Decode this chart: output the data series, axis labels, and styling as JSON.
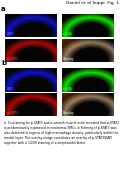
{
  "header": "Daniel et al Suppl. Fig. 1",
  "header_fontsize": 3.2,
  "panel_a_label": "a",
  "panel_b_label": "b",
  "panel_label_fontsize": 5,
  "labels_a": [
    "DAPI",
    "α-SMA",
    "p-STAT3",
    "Overlay"
  ],
  "labels_b": [
    "DAPI",
    "α-SMA",
    "p-STAT3",
    "Overlay"
  ],
  "label_colors": [
    "#5577ff",
    "#44ff44",
    "#ff4444",
    "#ffffff"
  ],
  "caption": "a  Co-staining for p-STAT3 and α-smooth muscle actin revealed that p-STAT3 is predominantly expressed in neointimal SMCs. b Staining of p-STAT3 was also detected in regions of high macrophage density, particularly within the medial layer. The overlay image constitutes an overlay of p-STAT3/DAPI together with a 1/200 staining of α-streptavidin biotin.",
  "caption_fontsize": 2.2,
  "bg_color": "#ffffff"
}
